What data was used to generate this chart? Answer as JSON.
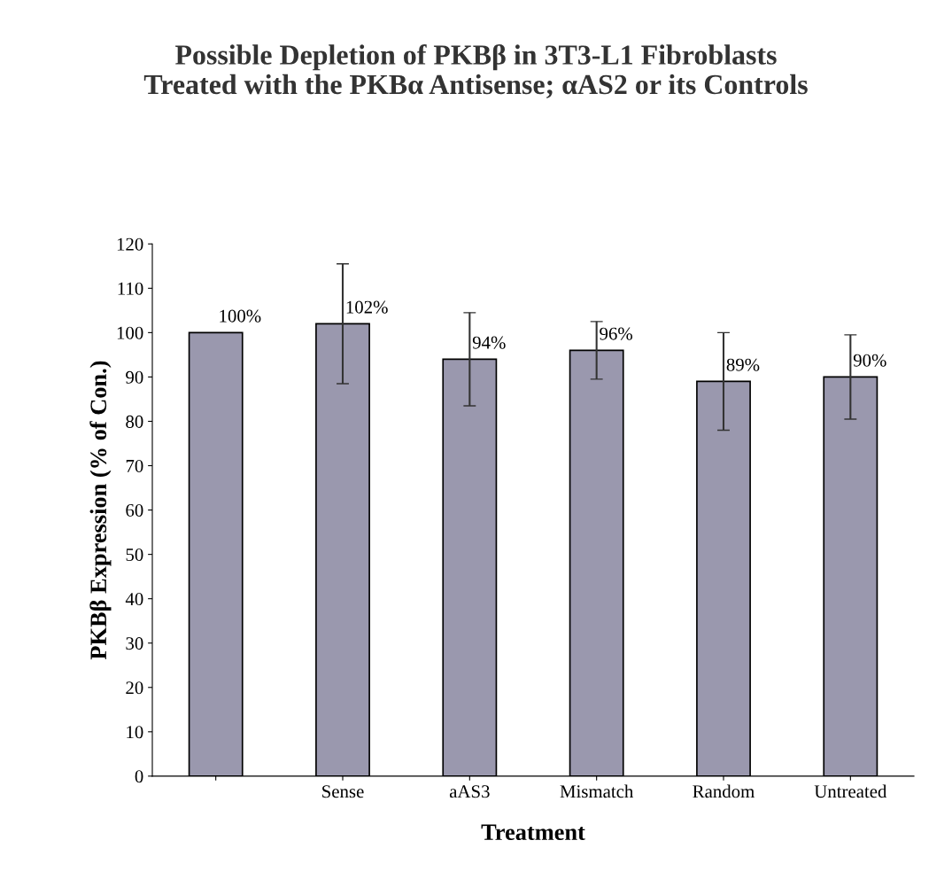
{
  "chart_data": {
    "type": "bar",
    "title": "Possible Depletion of PKBβ in 3T3-L1 Fibroblasts\nTreated with the PKBα Antisense; αAS2 or its Controls",
    "xlabel": "Treatment",
    "ylabel": "PKBβ Expression (% of Con.)",
    "categories": [
      null,
      "Sense",
      "aAS3",
      "Mismatch",
      "Random",
      "Untreated"
    ],
    "values": [
      100,
      102,
      94,
      96,
      89,
      90
    ],
    "errors": [
      null,
      13.5,
      10.5,
      6.5,
      11,
      9.5
    ],
    "value_labels": [
      "100%",
      "102%",
      "94%",
      "96%",
      "89%",
      "90%"
    ],
    "color": "#9a98ae",
    "ylim": [
      0,
      120
    ],
    "yticks": [
      0,
      10,
      20,
      30,
      40,
      50,
      60,
      70,
      80,
      90,
      100,
      110,
      120
    ],
    "grid": false,
    "legend": false
  }
}
